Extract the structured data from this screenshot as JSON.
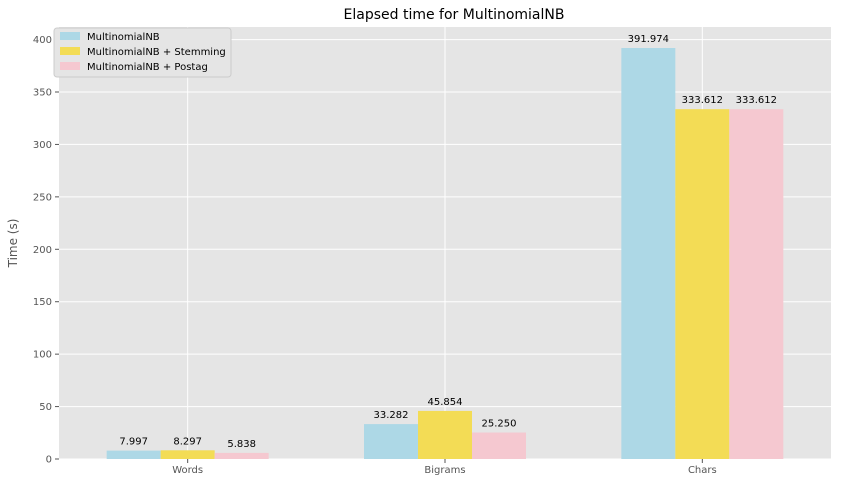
{
  "chart_data": {
    "type": "bar",
    "title": "Elapsed time for MultinomialNB",
    "xlabel": "",
    "ylabel": "Time (s)",
    "categories": [
      "Words",
      "Bigrams",
      "Chars"
    ],
    "series": [
      {
        "name": "MultinomialNB",
        "values": [
          7.997,
          33.282,
          391.974
        ],
        "labels": [
          "7.997",
          "33.282",
          "391.974"
        ],
        "color": "#add8e6"
      },
      {
        "name": "MultinomialNB + Stemming",
        "values": [
          8.297,
          45.854,
          333.612
        ],
        "labels": [
          "8.297",
          "45.854",
          "333.612"
        ],
        "color": "#f3dc55"
      },
      {
        "name": "MultinomialNB + Postag",
        "values": [
          5.838,
          25.25,
          333.612
        ],
        "labels": [
          "5.838",
          "25.250",
          "333.612"
        ],
        "color": "#f5c8d0"
      }
    ],
    "ylim": [
      0,
      412
    ],
    "yticks": [
      0,
      50,
      100,
      150,
      200,
      250,
      300,
      350,
      400
    ],
    "grid": true,
    "legend_position": "top-left",
    "colors": {
      "plot_background": "#e5e5e5",
      "grid": "#ffffff"
    }
  }
}
